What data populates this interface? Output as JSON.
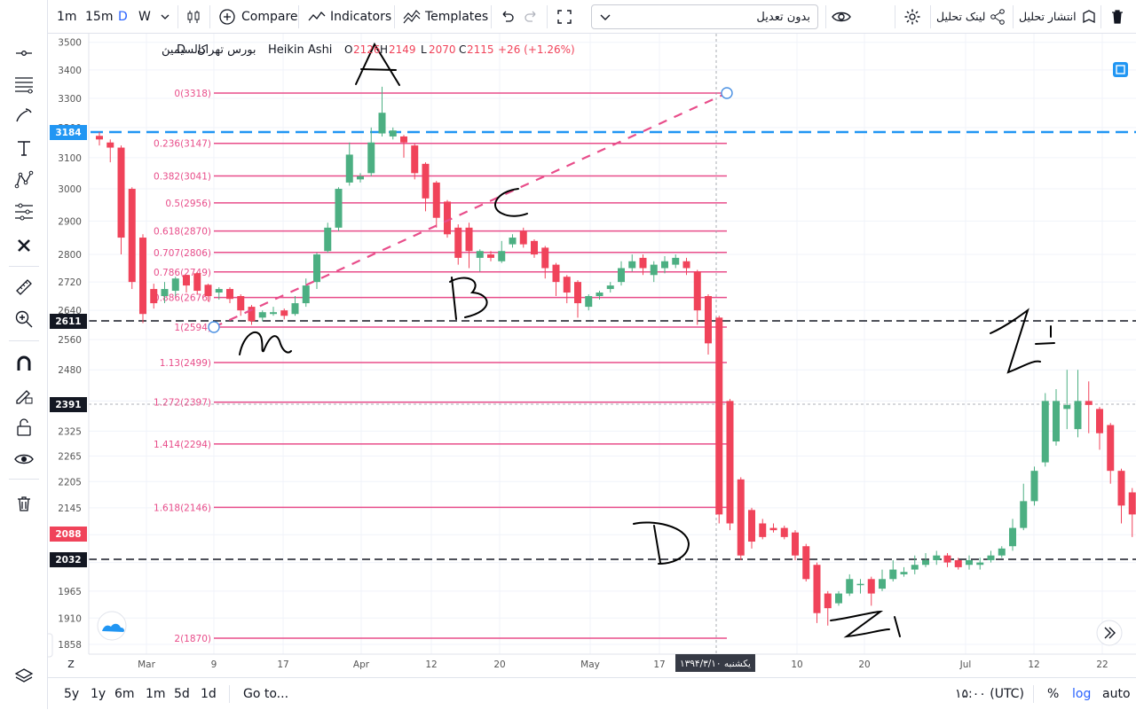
{
  "toolbar": {
    "intervals": [
      "1m",
      "15m",
      "D",
      "W"
    ],
    "active_interval": "D",
    "compare_label": "Compare",
    "indicators_label": "Indicators",
    "templates_label": "Templates",
    "adjustment_select": "بدون تعدیل",
    "link_label": "لینک تحلیل",
    "publish_label": "انتشار تحلیل"
  },
  "legend": {
    "symbol": "کالسیمین",
    "separator": "·",
    "interval": "D",
    "exchange": "بورس تهران",
    "chart_style": "Heikin Ashi",
    "o_label": "O",
    "o_value": "2126",
    "h_label": "H",
    "h_value": "2149",
    "l_label": "L",
    "l_value": "2070",
    "c_label": "C",
    "c_value": "2115",
    "change": "+26 (+1.26%)"
  },
  "colors": {
    "up": "#4caf82",
    "down": "#f0435a",
    "fib": "#e84d8a",
    "blue_line": "#2196f3",
    "dark_label": "#131722",
    "accent": "#2962ff"
  },
  "price_axis": {
    "ticks": [
      "3500",
      "3400",
      "3300",
      "3200",
      "3100",
      "3000",
      "2900",
      "2800",
      "2720",
      "2640",
      "2560",
      "2480",
      "2400",
      "2325",
      "2265",
      "2205",
      "2145",
      "2085",
      "2025",
      "1965",
      "1910",
      "1858"
    ],
    "scale": "log",
    "labels": [
      {
        "text": "3184",
        "style": "blue"
      },
      {
        "text": "2611",
        "style": "dark"
      },
      {
        "text": "2391",
        "style": "dark"
      },
      {
        "text": "2088",
        "style": "red"
      },
      {
        "text": "2032",
        "style": "dark"
      }
    ]
  },
  "time_axis": {
    "labels": [
      "Mar",
      "9",
      "17",
      "Apr",
      "12",
      "20",
      "May",
      "17",
      "10",
      "20",
      "Jul",
      "12",
      "22"
    ],
    "crosshair_label": "یکشنبه ۱۳۹۴/۳/۱۰"
  },
  "fib_levels": [
    {
      "label": "0(3318)",
      "price": 3318
    },
    {
      "label": "0.236(3147)",
      "price": 3147
    },
    {
      "label": "0.382(3041)",
      "price": 3041
    },
    {
      "label": "0.5(2956)",
      "price": 2956
    },
    {
      "label": "0.618(2870)",
      "price": 2870
    },
    {
      "label": "0.707(2806)",
      "price": 2806
    },
    {
      "label": "0.786(2749)",
      "price": 2749
    },
    {
      "label": "0.886(2676)",
      "price": 2676
    },
    {
      "label": "1(2594)",
      "price": 2594
    },
    {
      "label": "1.13(2499)",
      "price": 2499
    },
    {
      "label": "1.272(2397)",
      "price": 2397
    },
    {
      "label": "1.414(2294)",
      "price": 2294
    },
    {
      "label": "1.618(2146)",
      "price": 2146
    },
    {
      "label": "2(1870)",
      "price": 1870
    }
  ],
  "annotations": [
    "A",
    "B",
    "C",
    "D",
    "A",
    "A"
  ],
  "bottom": {
    "ranges": [
      "5y",
      "1y",
      "6m",
      "1m",
      "5d",
      "1d"
    ],
    "goto_label": "Go to...",
    "time_label": "۱۵:۰۰ (UTC)",
    "percent_label": "%",
    "log_label": "log",
    "auto_label": "auto"
  },
  "chart_data": {
    "type": "candlestick",
    "chart_style": "Heikin Ashi",
    "y_scale": "log",
    "ylim": [
      1840,
      3560
    ],
    "candles": [
      [
        3172,
        3160,
        3185,
        3140
      ],
      [
        3150,
        3133,
        3160,
        3085
      ],
      [
        3133,
        2850,
        3140,
        2800
      ],
      [
        3000,
        2720,
        3005,
        2700
      ],
      [
        2850,
        2630,
        2860,
        2605
      ],
      [
        2700,
        2660,
        2715,
        2645
      ],
      [
        2680,
        2700,
        2720,
        2660
      ],
      [
        2695,
        2730,
        2735,
        2680
      ],
      [
        2740,
        2710,
        2740,
        2690
      ],
      [
        2745,
        2695,
        2748,
        2685
      ],
      [
        2712,
        2680,
        2715,
        2665
      ],
      [
        2690,
        2700,
        2705,
        2670
      ],
      [
        2700,
        2672,
        2705,
        2660
      ],
      [
        2680,
        2640,
        2685,
        2625
      ],
      [
        2650,
        2610,
        2655,
        2600
      ],
      [
        2620,
        2635,
        2640,
        2610
      ],
      [
        2630,
        2635,
        2650,
        2625
      ],
      [
        2640,
        2625,
        2645,
        2615
      ],
      [
        2630,
        2660,
        2680,
        2625
      ],
      [
        2660,
        2710,
        2730,
        2650
      ],
      [
        2720,
        2800,
        2805,
        2700
      ],
      [
        2810,
        2880,
        2895,
        2805
      ],
      [
        2880,
        3000,
        3005,
        2870
      ],
      [
        3020,
        3110,
        3150,
        3010
      ],
      [
        3030,
        3040,
        3050,
        3020
      ],
      [
        3050,
        3150,
        3200,
        3040
      ],
      [
        3180,
        3250,
        3340,
        3170
      ],
      [
        3170,
        3190,
        3200,
        3160
      ],
      [
        3170,
        3150,
        3175,
        3100
      ],
      [
        3140,
        3050,
        3145,
        3030
      ],
      [
        3080,
        2970,
        3085,
        2930
      ],
      [
        3020,
        2910,
        3025,
        2880
      ],
      [
        2960,
        2860,
        2965,
        2850
      ],
      [
        2880,
        2790,
        2890,
        2770
      ],
      [
        2880,
        2810,
        2895,
        2760
      ],
      [
        2790,
        2810,
        2815,
        2750
      ],
      [
        2800,
        2790,
        2810,
        2780
      ],
      [
        2780,
        2810,
        2840,
        2775
      ],
      [
        2830,
        2850,
        2860,
        2820
      ],
      [
        2870,
        2830,
        2880,
        2820
      ],
      [
        2840,
        2800,
        2845,
        2790
      ],
      [
        2820,
        2760,
        2825,
        2730
      ],
      [
        2770,
        2720,
        2775,
        2680
      ],
      [
        2735,
        2690,
        2740,
        2660
      ],
      [
        2720,
        2660,
        2725,
        2620
      ],
      [
        2650,
        2680,
        2685,
        2640
      ],
      [
        2680,
        2690,
        2695,
        2670
      ],
      [
        2700,
        2710,
        2720,
        2690
      ],
      [
        2720,
        2760,
        2780,
        2710
      ],
      [
        2760,
        2780,
        2800,
        2750
      ],
      [
        2790,
        2760,
        2800,
        2740
      ],
      [
        2740,
        2770,
        2780,
        2720
      ],
      [
        2760,
        2780,
        2795,
        2745
      ],
      [
        2770,
        2790,
        2800,
        2760
      ],
      [
        2780,
        2760,
        2790,
        2740
      ],
      [
        2750,
        2640,
        2755,
        2600
      ],
      [
        2680,
        2550,
        2685,
        2520
      ],
      [
        2620,
        2130,
        2625,
        2110
      ],
      [
        2400,
        2110,
        2405,
        2095
      ],
      [
        2210,
        2040,
        2215,
        2030
      ],
      [
        2140,
        2070,
        2145,
        2055
      ],
      [
        2110,
        2080,
        2120,
        2075
      ],
      [
        2100,
        2095,
        2110,
        2090
      ],
      [
        2100,
        2080,
        2105,
        2075
      ],
      [
        2090,
        2040,
        2095,
        2030
      ],
      [
        2060,
        1990,
        2065,
        1985
      ],
      [
        2020,
        1920,
        2025,
        1900
      ],
      [
        1960,
        1930,
        1965,
        1895
      ],
      [
        1940,
        1960,
        1965,
        1935
      ],
      [
        1960,
        1990,
        2000,
        1955
      ],
      [
        1980,
        1980,
        1990,
        1960
      ],
      [
        1990,
        1960,
        1995,
        1935
      ],
      [
        1970,
        1990,
        2010,
        1965
      ],
      [
        1990,
        2010,
        2030,
        1985
      ],
      [
        2000,
        2005,
        2015,
        1995
      ],
      [
        2010,
        2020,
        2040,
        2000
      ],
      [
        2020,
        2030,
        2045,
        2015
      ],
      [
        2030,
        2040,
        2050,
        2020
      ],
      [
        2040,
        2025,
        2045,
        2015
      ],
      [
        2030,
        2015,
        2035,
        2010
      ],
      [
        2020,
        2030,
        2040,
        2010
      ],
      [
        2020,
        2025,
        2035,
        2010
      ],
      [
        2030,
        2040,
        2050,
        2025
      ],
      [
        2040,
        2055,
        2060,
        2035
      ],
      [
        2060,
        2100,
        2120,
        2050
      ],
      [
        2100,
        2160,
        2200,
        2095
      ],
      [
        2160,
        2230,
        2240,
        2150
      ],
      [
        2250,
        2400,
        2420,
        2240
      ],
      [
        2300,
        2400,
        2430,
        2290
      ],
      [
        2380,
        2390,
        2480,
        2330
      ],
      [
        2330,
        2400,
        2480,
        2310
      ],
      [
        2400,
        2390,
        2450,
        2320
      ],
      [
        2380,
        2320,
        2385,
        2280
      ],
      [
        2340,
        2230,
        2345,
        2200
      ],
      [
        2230,
        2150,
        2235,
        2110
      ],
      [
        2180,
        2130,
        2190,
        2080
      ],
      [
        2140,
        2090,
        2150,
        2060
      ]
    ]
  }
}
